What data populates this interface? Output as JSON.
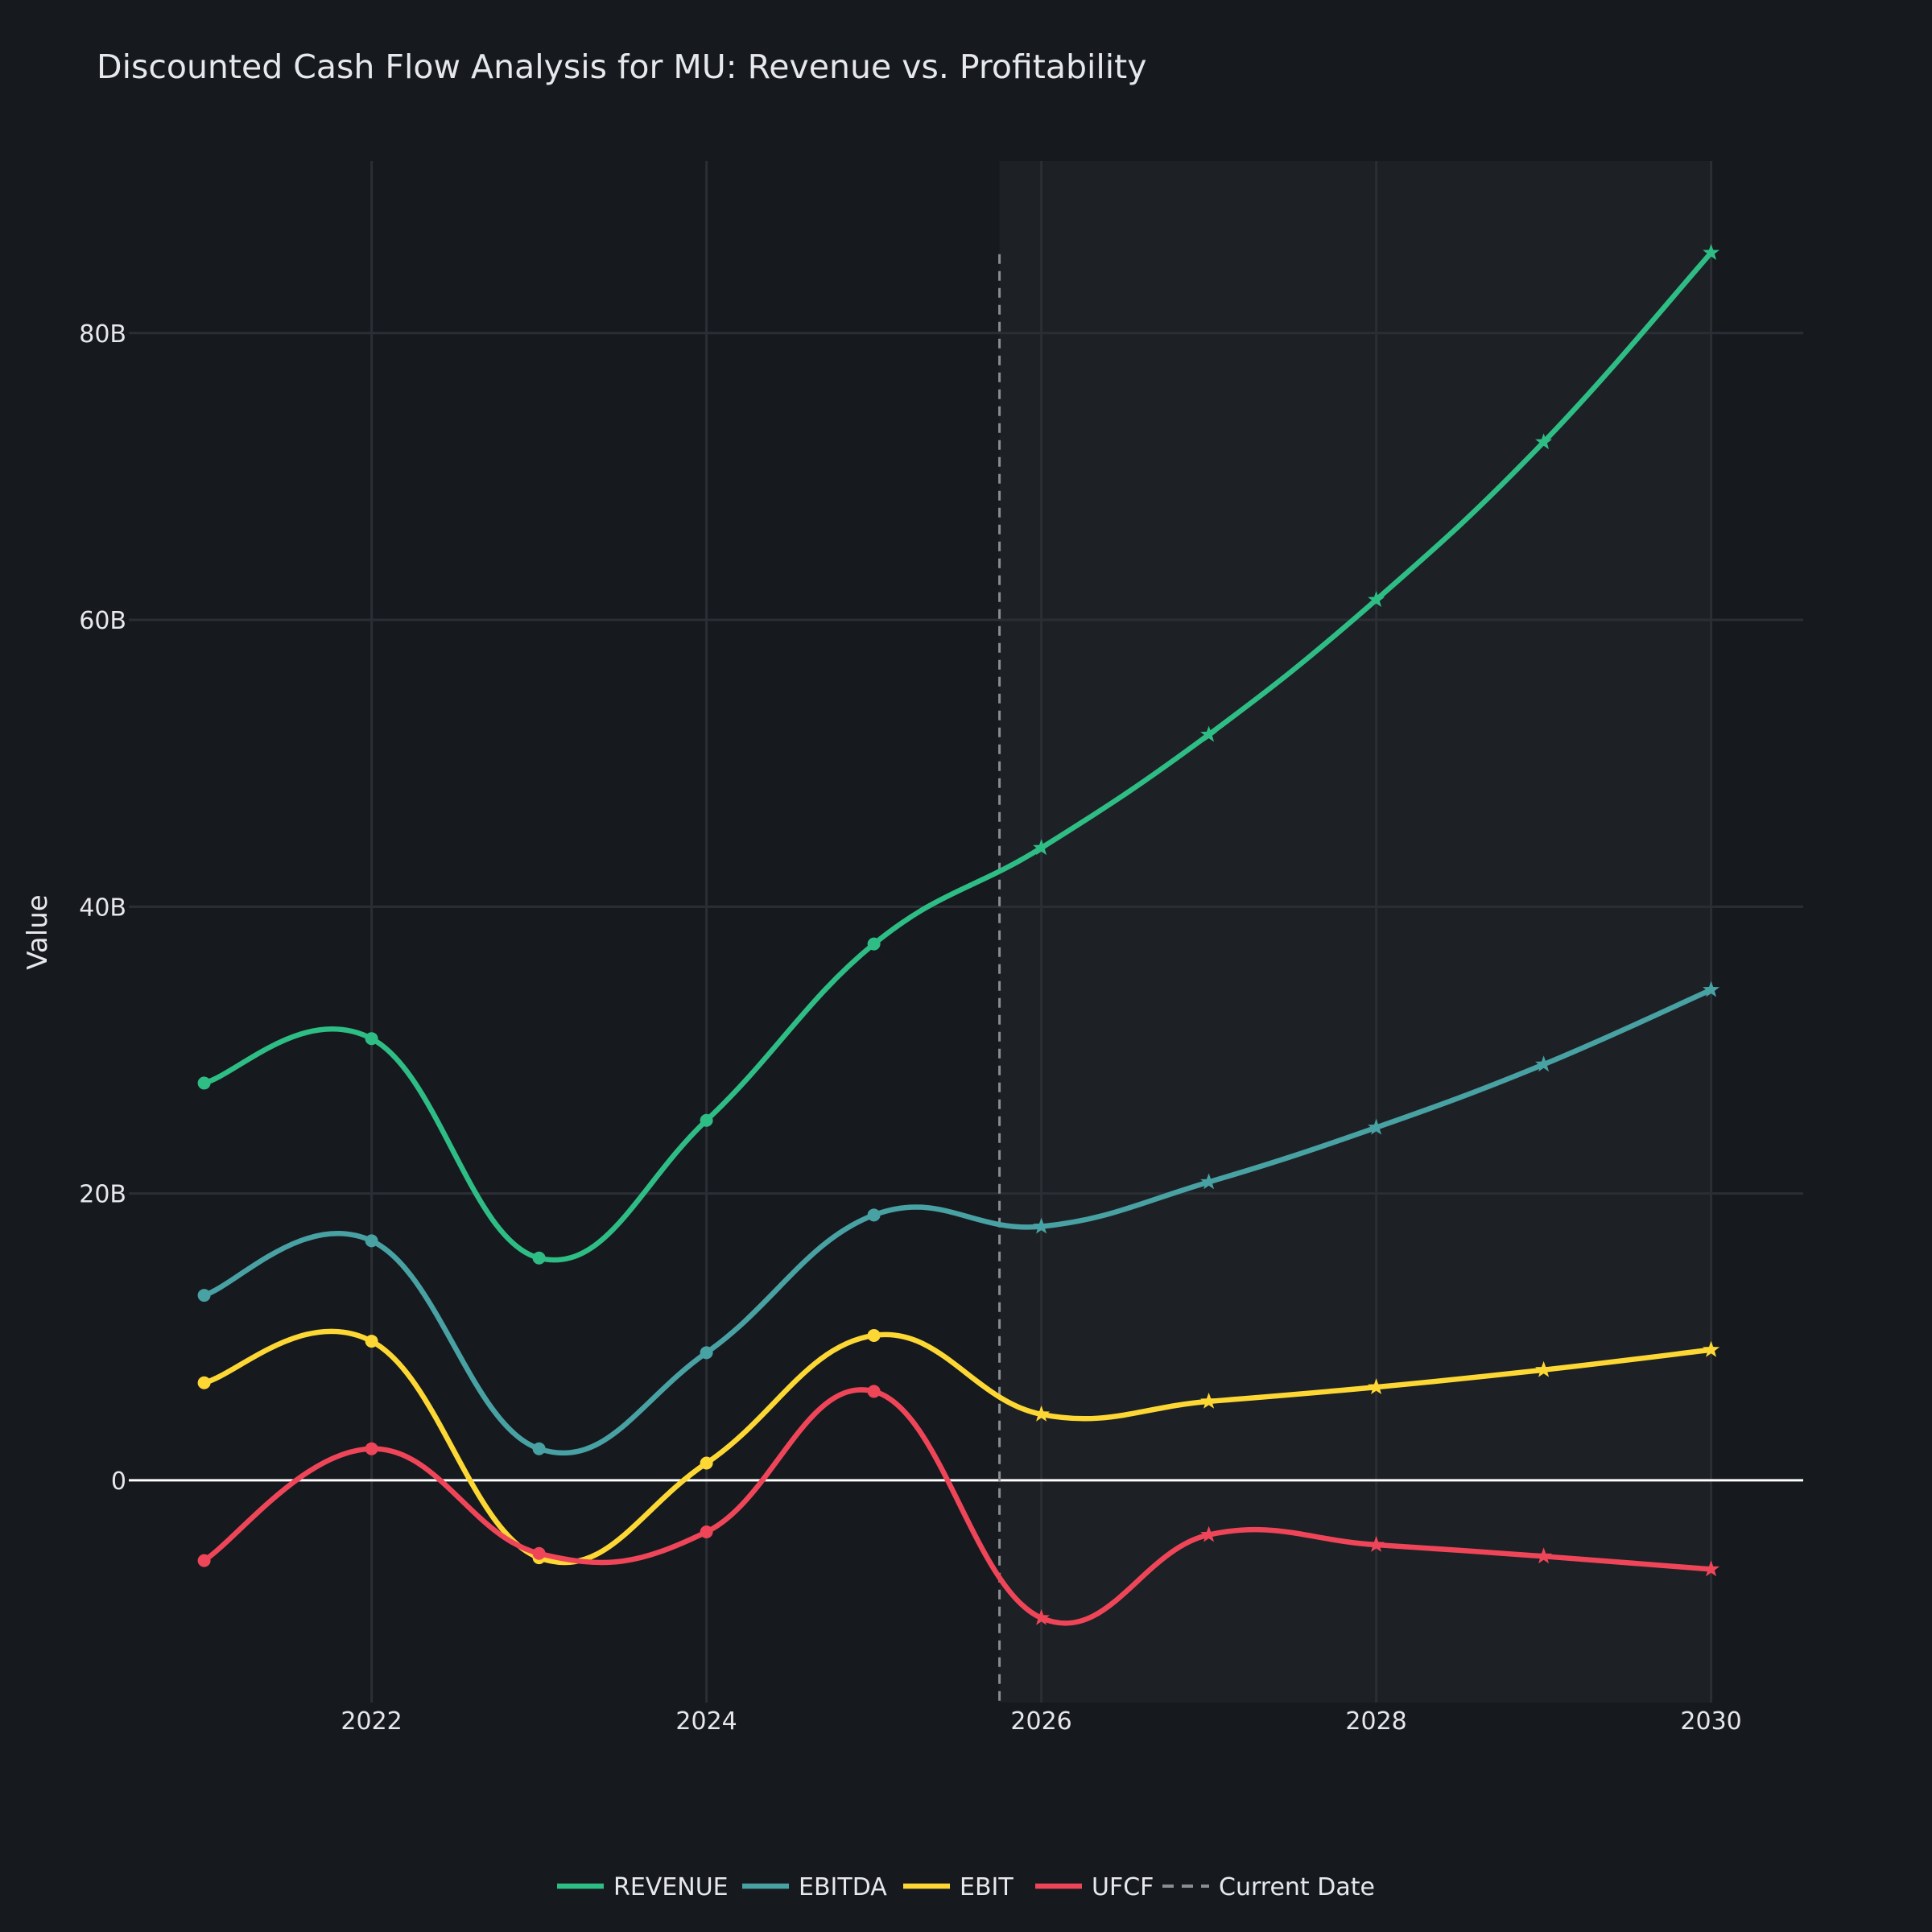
{
  "colors": {
    "background": "#16191e",
    "forecast_shade": "#1d2024",
    "grid": "#2b2f35",
    "zero_line": "#ffffff",
    "text": "#e6e8eb",
    "current_date": "#8a8d92"
  },
  "chart_data": {
    "type": "line",
    "title": "Discounted Cash Flow Analysis for MU: Revenue vs. Profitability",
    "xlabel": "",
    "ylabel": "Value",
    "xlim": [
      2020.55,
      2030.55
    ],
    "ylim": [
      -15.5,
      92
    ],
    "x_ticks": [
      2022,
      2024,
      2026,
      2028,
      2030
    ],
    "x_tick_labels": [
      "2022",
      "2024",
      "2026",
      "2028",
      "2030"
    ],
    "y_ticks": [
      0,
      20,
      40,
      60,
      80
    ],
    "y_tick_labels": [
      "0",
      "20B",
      "40B",
      "60B",
      "80B"
    ],
    "current_date": 2025.75,
    "forecast_region": [
      2025.75,
      2030.0
    ],
    "legend_position": "bottom-center",
    "series": [
      {
        "name": "REVENUE",
        "color": "#2ebd85",
        "actual": {
          "x": [
            2021,
            2022,
            2023,
            2024,
            2025
          ],
          "y": [
            27.7,
            30.8,
            15.5,
            25.1,
            37.4
          ]
        },
        "forecast": {
          "x": [
            2026,
            2027,
            2028,
            2029,
            2030
          ],
          "y": [
            44.1,
            52.0,
            61.4,
            72.4,
            85.6
          ]
        }
      },
      {
        "name": "EBITDA",
        "color": "#48a1a3",
        "actual": {
          "x": [
            2021,
            2022,
            2023,
            2024,
            2025
          ],
          "y": [
            12.9,
            16.7,
            2.2,
            8.9,
            18.5
          ]
        },
        "forecast": {
          "x": [
            2026,
            2027,
            2028,
            2029,
            2030
          ],
          "y": [
            17.7,
            20.8,
            24.6,
            29.0,
            34.2
          ]
        }
      },
      {
        "name": "EBIT",
        "color": "#fdd835",
        "actual": {
          "x": [
            2021,
            2022,
            2023,
            2024,
            2025
          ],
          "y": [
            6.8,
            9.7,
            -5.4,
            1.2,
            10.1
          ]
        },
        "forecast": {
          "x": [
            2026,
            2027,
            2028,
            2029,
            2030
          ],
          "y": [
            4.6,
            5.5,
            6.5,
            7.7,
            9.1
          ]
        }
      },
      {
        "name": "UFCF",
        "color": "#ef4559",
        "actual": {
          "x": [
            2021,
            2022,
            2023,
            2024,
            2025
          ],
          "y": [
            -5.6,
            2.2,
            -5.1,
            -3.6,
            6.2
          ]
        },
        "forecast": {
          "x": [
            2026,
            2027,
            2028,
            2029,
            2030
          ],
          "y": [
            -9.6,
            -3.8,
            -4.5,
            -5.3,
            -6.2
          ]
        }
      }
    ],
    "legend": [
      "REVENUE",
      "EBITDA",
      "EBIT",
      "UFCF",
      "Current Date"
    ]
  }
}
